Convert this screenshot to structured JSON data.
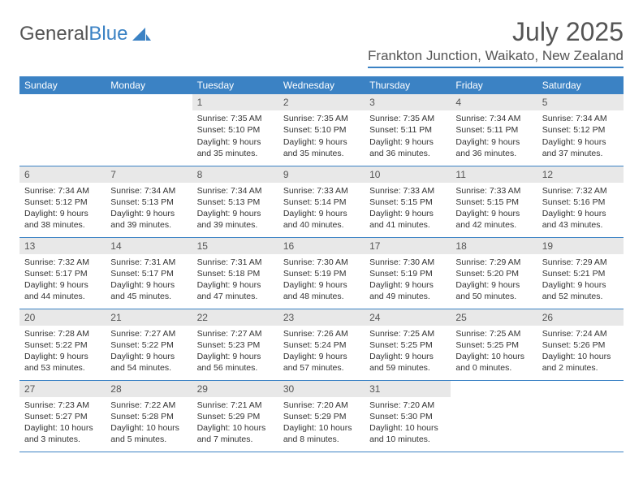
{
  "brand": {
    "part1": "General",
    "part2": "Blue"
  },
  "title": "July 2025",
  "location": "Frankton Junction, Waikato, New Zealand",
  "colors": {
    "accent": "#3b82c4",
    "header_text": "#ffffff",
    "daynum_bg": "#e8e8e8",
    "text": "#333333",
    "muted": "#555555",
    "background": "#ffffff"
  },
  "weekdays": [
    "Sunday",
    "Monday",
    "Tuesday",
    "Wednesday",
    "Thursday",
    "Friday",
    "Saturday"
  ],
  "grid": {
    "first_weekday_index": 2,
    "rows": 5,
    "cols": 7
  },
  "days": [
    {
      "n": 1,
      "sunrise": "7:35 AM",
      "sunset": "5:10 PM",
      "daylight": "9 hours and 35 minutes."
    },
    {
      "n": 2,
      "sunrise": "7:35 AM",
      "sunset": "5:10 PM",
      "daylight": "9 hours and 35 minutes."
    },
    {
      "n": 3,
      "sunrise": "7:35 AM",
      "sunset": "5:11 PM",
      "daylight": "9 hours and 36 minutes."
    },
    {
      "n": 4,
      "sunrise": "7:34 AM",
      "sunset": "5:11 PM",
      "daylight": "9 hours and 36 minutes."
    },
    {
      "n": 5,
      "sunrise": "7:34 AM",
      "sunset": "5:12 PM",
      "daylight": "9 hours and 37 minutes."
    },
    {
      "n": 6,
      "sunrise": "7:34 AM",
      "sunset": "5:12 PM",
      "daylight": "9 hours and 38 minutes."
    },
    {
      "n": 7,
      "sunrise": "7:34 AM",
      "sunset": "5:13 PM",
      "daylight": "9 hours and 39 minutes."
    },
    {
      "n": 8,
      "sunrise": "7:34 AM",
      "sunset": "5:13 PM",
      "daylight": "9 hours and 39 minutes."
    },
    {
      "n": 9,
      "sunrise": "7:33 AM",
      "sunset": "5:14 PM",
      "daylight": "9 hours and 40 minutes."
    },
    {
      "n": 10,
      "sunrise": "7:33 AM",
      "sunset": "5:15 PM",
      "daylight": "9 hours and 41 minutes."
    },
    {
      "n": 11,
      "sunrise": "7:33 AM",
      "sunset": "5:15 PM",
      "daylight": "9 hours and 42 minutes."
    },
    {
      "n": 12,
      "sunrise": "7:32 AM",
      "sunset": "5:16 PM",
      "daylight": "9 hours and 43 minutes."
    },
    {
      "n": 13,
      "sunrise": "7:32 AM",
      "sunset": "5:17 PM",
      "daylight": "9 hours and 44 minutes."
    },
    {
      "n": 14,
      "sunrise": "7:31 AM",
      "sunset": "5:17 PM",
      "daylight": "9 hours and 45 minutes."
    },
    {
      "n": 15,
      "sunrise": "7:31 AM",
      "sunset": "5:18 PM",
      "daylight": "9 hours and 47 minutes."
    },
    {
      "n": 16,
      "sunrise": "7:30 AM",
      "sunset": "5:19 PM",
      "daylight": "9 hours and 48 minutes."
    },
    {
      "n": 17,
      "sunrise": "7:30 AM",
      "sunset": "5:19 PM",
      "daylight": "9 hours and 49 minutes."
    },
    {
      "n": 18,
      "sunrise": "7:29 AM",
      "sunset": "5:20 PM",
      "daylight": "9 hours and 50 minutes."
    },
    {
      "n": 19,
      "sunrise": "7:29 AM",
      "sunset": "5:21 PM",
      "daylight": "9 hours and 52 minutes."
    },
    {
      "n": 20,
      "sunrise": "7:28 AM",
      "sunset": "5:22 PM",
      "daylight": "9 hours and 53 minutes."
    },
    {
      "n": 21,
      "sunrise": "7:27 AM",
      "sunset": "5:22 PM",
      "daylight": "9 hours and 54 minutes."
    },
    {
      "n": 22,
      "sunrise": "7:27 AM",
      "sunset": "5:23 PM",
      "daylight": "9 hours and 56 minutes."
    },
    {
      "n": 23,
      "sunrise": "7:26 AM",
      "sunset": "5:24 PM",
      "daylight": "9 hours and 57 minutes."
    },
    {
      "n": 24,
      "sunrise": "7:25 AM",
      "sunset": "5:25 PM",
      "daylight": "9 hours and 59 minutes."
    },
    {
      "n": 25,
      "sunrise": "7:25 AM",
      "sunset": "5:25 PM",
      "daylight": "10 hours and 0 minutes."
    },
    {
      "n": 26,
      "sunrise": "7:24 AM",
      "sunset": "5:26 PM",
      "daylight": "10 hours and 2 minutes."
    },
    {
      "n": 27,
      "sunrise": "7:23 AM",
      "sunset": "5:27 PM",
      "daylight": "10 hours and 3 minutes."
    },
    {
      "n": 28,
      "sunrise": "7:22 AM",
      "sunset": "5:28 PM",
      "daylight": "10 hours and 5 minutes."
    },
    {
      "n": 29,
      "sunrise": "7:21 AM",
      "sunset": "5:29 PM",
      "daylight": "10 hours and 7 minutes."
    },
    {
      "n": 30,
      "sunrise": "7:20 AM",
      "sunset": "5:29 PM",
      "daylight": "10 hours and 8 minutes."
    },
    {
      "n": 31,
      "sunrise": "7:20 AM",
      "sunset": "5:30 PM",
      "daylight": "10 hours and 10 minutes."
    }
  ],
  "labels": {
    "sunrise_prefix": "Sunrise: ",
    "sunset_prefix": "Sunset: ",
    "daylight_prefix": "Daylight: "
  }
}
